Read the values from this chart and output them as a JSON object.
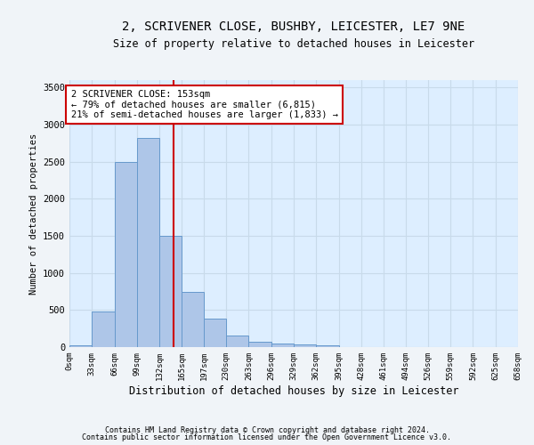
{
  "title": "2, SCRIVENER CLOSE, BUSHBY, LEICESTER, LE7 9NE",
  "subtitle": "Size of property relative to detached houses in Leicester",
  "xlabel": "Distribution of detached houses by size in Leicester",
  "ylabel": "Number of detached properties",
  "bar_color": "#aec6e8",
  "bar_edge_color": "#6699cc",
  "bin_edges": [
    0,
    33,
    66,
    99,
    132,
    165,
    197,
    230,
    263,
    296,
    329,
    362,
    395,
    428,
    461,
    494,
    526,
    559,
    592,
    625,
    658
  ],
  "bar_heights": [
    20,
    480,
    2500,
    2820,
    1500,
    740,
    390,
    155,
    75,
    50,
    40,
    30,
    5,
    3,
    2,
    1,
    1,
    1,
    0,
    0
  ],
  "tick_labels": [
    "0sqm",
    "33sqm",
    "66sqm",
    "99sqm",
    "132sqm",
    "165sqm",
    "197sqm",
    "230sqm",
    "263sqm",
    "296sqm",
    "329sqm",
    "362sqm",
    "395sqm",
    "428sqm",
    "461sqm",
    "494sqm",
    "526sqm",
    "559sqm",
    "592sqm",
    "625sqm",
    "658sqm"
  ],
  "property_size": 153,
  "red_line_color": "#cc0000",
  "annotation_text": "2 SCRIVENER CLOSE: 153sqm\n← 79% of detached houses are smaller (6,815)\n21% of semi-detached houses are larger (1,833) →",
  "annotation_box_color": "#ffffff",
  "annotation_box_edge_color": "#cc0000",
  "ylim": [
    0,
    3600
  ],
  "yticks": [
    0,
    500,
    1000,
    1500,
    2000,
    2500,
    3000,
    3500
  ],
  "grid_color": "#c8daea",
  "background_color": "#ddeeff",
  "fig_background": "#f0f4f8",
  "footer_line1": "Contains HM Land Registry data © Crown copyright and database right 2024.",
  "footer_line2": "Contains public sector information licensed under the Open Government Licence v3.0."
}
